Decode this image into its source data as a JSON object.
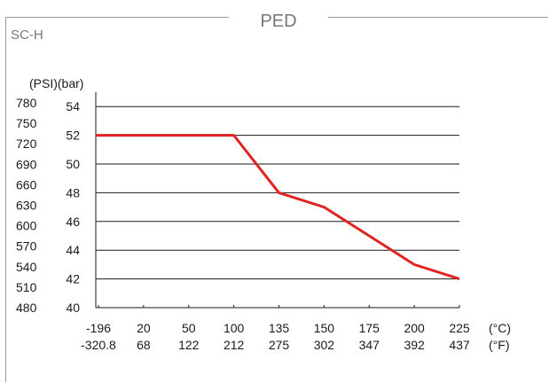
{
  "header": {
    "title": "PED",
    "subtitle": "SC-H"
  },
  "chart_data": {
    "type": "line",
    "axis_units_label": "(PSI)(bar)",
    "y_bar_ticks": [
      "54",
      "52",
      "50",
      "48",
      "46",
      "44",
      "42",
      "40"
    ],
    "y_bar_range": [
      40,
      55
    ],
    "y_psi_ticks": [
      "780",
      "750",
      "720",
      "690",
      "660",
      "630",
      "600",
      "570",
      "540",
      "510",
      "480"
    ],
    "x_celsius_ticks": [
      "-196",
      "20",
      "50",
      "100",
      "135",
      "150",
      "175",
      "200",
      "225"
    ],
    "x_fahrenheit_ticks": [
      "-320.8",
      "68",
      "122",
      "212",
      "275",
      "302",
      "347",
      "392",
      "437"
    ],
    "x_celsius_unit": "(°C)",
    "x_fahrenheit_unit": "(°F)",
    "series": [
      {
        "x": [
          "-196",
          "20",
          "50",
          "100",
          "135",
          "150",
          "175",
          "200",
          "225"
        ],
        "values": [
          52,
          52,
          52,
          52,
          48,
          47,
          45,
          43,
          42
        ]
      }
    ],
    "grid": true,
    "line_color": "#e02424"
  }
}
